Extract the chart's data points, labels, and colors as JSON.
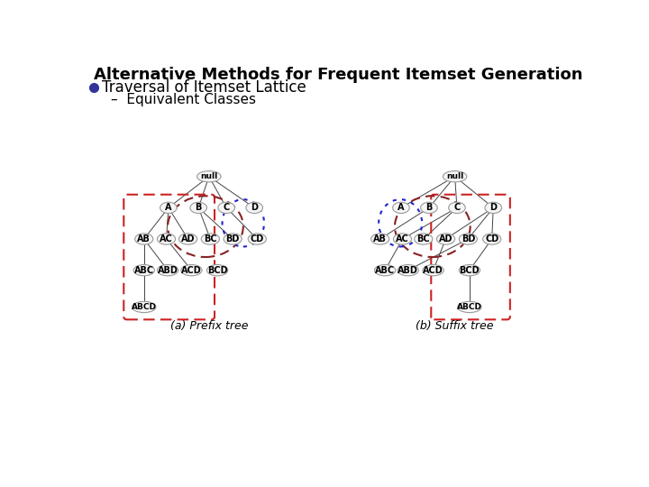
{
  "title": "Alternative Methods for Frequent Itemset Generation",
  "bullet": "Traversal of Itemset Lattice",
  "sub_bullet": "Equivalent Classes",
  "caption_a": "(a) Prefix tree",
  "caption_b": "(b) Suffix tree",
  "bg_color": "#ffffff",
  "text_color": "#000000",
  "bullet_color": "#333399",
  "node_edge_color": "#999999",
  "node_fill_color": "#f5f5f5",
  "line_color": "#444444",
  "red_dash": "#cc2222",
  "blue_dot": "#2222cc",
  "darkred_dash": "#882222"
}
